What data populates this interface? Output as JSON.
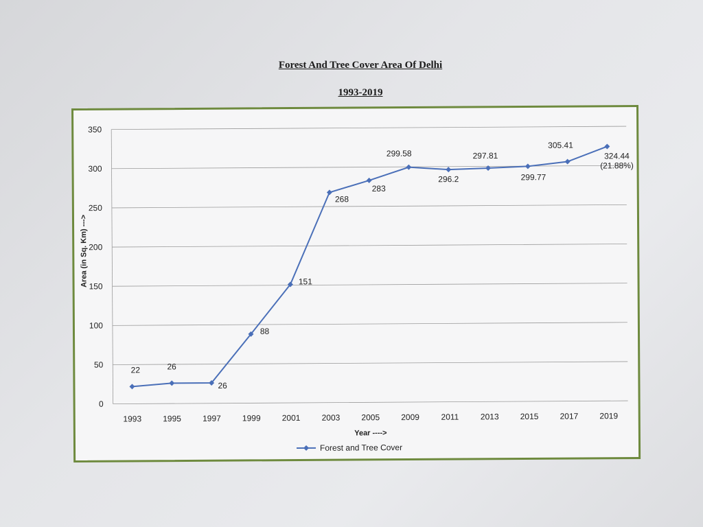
{
  "chart_data": {
    "type": "line",
    "title": "Forest And Tree Cover Area Of Delhi",
    "subtitle": "1993-2019",
    "xlabel": "Year ---->",
    "ylabel": "Area (in Sq. Km)  --->",
    "categories": [
      "1993",
      "1995",
      "1997",
      "1999",
      "2001",
      "2003",
      "2005",
      "2009",
      "2011",
      "2013",
      "2015",
      "2017",
      "2019"
    ],
    "series": [
      {
        "name": "Forest and Tree Cover",
        "values": [
          22,
          26,
          26,
          88,
          151,
          268,
          283,
          299.58,
          296.2,
          297.81,
          299.77,
          305.41,
          324.44
        ],
        "labels": [
          "22",
          "26",
          "26",
          "88",
          "151",
          "268",
          "283",
          "299.58",
          "296.2",
          "297.81",
          "299.77",
          "305.41",
          "324.44"
        ]
      }
    ],
    "annotation": "(21.88%)",
    "ylim": [
      0,
      350
    ],
    "yticks": [
      0,
      50,
      100,
      150,
      200,
      250,
      300,
      350
    ],
    "grid": true,
    "legend": "bottom",
    "colors": {
      "line": "#4a6fb8",
      "grid": "#9a9a9a",
      "frame": "#6e8a3e"
    }
  }
}
